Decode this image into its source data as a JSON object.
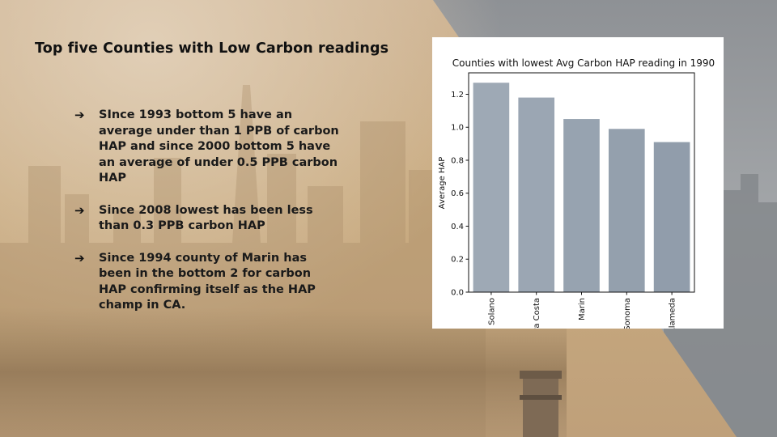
{
  "slide": {
    "title": "Top five Counties with Low Carbon readings",
    "bullets": [
      "SInce 1993 bottom 5 have an average under than 1 PPB of carbon HAP and since 2000 bottom 5 have an average of under 0.5 PPB carbon HAP",
      "Since 2008 lowest has been less than 0.3 PPB carbon HAP",
      "Since 1994 county of Marin has been in the bottom 2 for carbon HAP confirming itself as the HAP champ in CA."
    ],
    "bullet_marker": "➔"
  },
  "colors": {
    "panel_tan": "#c8ab84",
    "smog_gray": "#9c9fa3",
    "bar_fill": "#8d9aa8",
    "text": "#111111"
  },
  "chart_data": {
    "type": "bar",
    "title": "Counties with lowest Avg Carbon HAP reading in 1990",
    "xlabel": "",
    "ylabel": "Average HAP",
    "categories": [
      "Solano",
      "Contra Costa",
      "Marin",
      "Sonoma",
      "Alameda"
    ],
    "values": [
      1.27,
      1.18,
      1.05,
      0.99,
      0.91
    ],
    "ylim": [
      0,
      1.33
    ],
    "yticks": [
      0.0,
      0.2,
      0.4,
      0.6,
      0.8,
      1.0,
      1.2
    ],
    "ytick_labels": [
      "0.0",
      "0.2",
      "0.4",
      "0.6",
      "0.8",
      "1.0",
      "1.2"
    ],
    "grid": false,
    "legend": "none"
  }
}
